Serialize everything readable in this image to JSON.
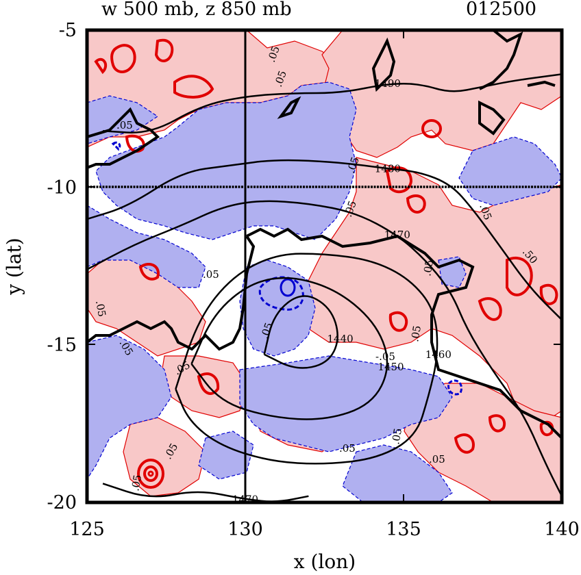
{
  "header": {
    "left_title": "w 500 mb, z 850 mb",
    "right_title": "012500"
  },
  "chart_data": {
    "type": "contour",
    "xlabel": "x (lon)",
    "ylabel": "y (lat)",
    "xlim": [
      125,
      140
    ],
    "ylim": [
      -20,
      -5
    ],
    "x_ticks": [
      125,
      130,
      135,
      140
    ],
    "y_ticks": [
      -5,
      -10,
      -15,
      -20
    ],
    "colors": {
      "positive_fill": "#f8c8c8",
      "negative_fill": "#b0b0f0",
      "positive_line": "#e00000",
      "negative_line": "#0000d0",
      "height_contour": "#000000"
    },
    "reference_lines": {
      "x": 130,
      "y": -10
    },
    "height_contours": [
      {
        "level": 1490,
        "label": "1490",
        "points": [
          [
            125.5,
            -8.2
          ],
          [
            127,
            -8.3
          ],
          [
            128.6,
            -7.4
          ],
          [
            130,
            -7.1
          ],
          [
            131.5,
            -7.0
          ],
          [
            133,
            -7.0
          ],
          [
            134.5,
            -6.7
          ],
          [
            135.5,
            -6.7
          ],
          [
            136.5,
            -7.0
          ],
          [
            137.5,
            -6.8
          ],
          [
            138.5,
            -6.6
          ],
          [
            140,
            -6.4
          ]
        ]
      },
      {
        "level": 1480,
        "label": "1480",
        "points": [
          [
            125,
            -11.0
          ],
          [
            126.3,
            -10.6
          ],
          [
            128,
            -9.5
          ],
          [
            129.5,
            -9.3
          ],
          [
            131,
            -9.1
          ],
          [
            133,
            -9.2
          ],
          [
            134.5,
            -9.4
          ],
          [
            135.5,
            -9.5
          ],
          [
            136.5,
            -9.9
          ],
          [
            137.2,
            -10.7
          ],
          [
            138,
            -11.8
          ],
          [
            139,
            -13.2
          ],
          [
            140,
            -14.2
          ]
        ]
      },
      {
        "level": 1470,
        "label": "1470",
        "points": [
          [
            125,
            -12.6
          ],
          [
            126.5,
            -11.8
          ],
          [
            128,
            -11.2
          ],
          [
            129.3,
            -10.6
          ],
          [
            130.5,
            -10.4
          ],
          [
            132,
            -10.5
          ],
          [
            133.5,
            -10.8
          ],
          [
            134.8,
            -11.5
          ],
          [
            135.7,
            -12.3
          ],
          [
            136.5,
            -13.3
          ],
          [
            137,
            -14.5
          ],
          [
            137.8,
            -15.8
          ],
          [
            138.8,
            -17.2
          ],
          [
            139.5,
            -18.8
          ],
          [
            140,
            -19.8
          ]
        ]
      },
      {
        "level": 1460,
        "label": "1460",
        "points": [
          [
            127.8,
            -16.4
          ],
          [
            128.5,
            -14.2
          ],
          [
            129.6,
            -12.8
          ],
          [
            131,
            -12.1
          ],
          [
            132.5,
            -12.1
          ],
          [
            134,
            -12.3
          ],
          [
            135.2,
            -12.9
          ],
          [
            136,
            -13.9
          ],
          [
            136.1,
            -15.3
          ],
          [
            135.8,
            -16.6
          ],
          [
            135.4,
            -17.9
          ],
          [
            134.2,
            -18.6
          ],
          [
            132.5,
            -18.8
          ],
          [
            130.8,
            -18.7
          ],
          [
            129.2,
            -18.2
          ],
          [
            128.2,
            -17.4
          ],
          [
            127.8,
            -16.4
          ]
        ]
      },
      {
        "level": 1450,
        "label": "1450",
        "points": [
          [
            128.3,
            -15.6
          ],
          [
            129,
            -14.0
          ],
          [
            130.2,
            -13.0
          ],
          [
            131.5,
            -12.8
          ],
          [
            133,
            -13.3
          ],
          [
            134.2,
            -14.4
          ],
          [
            134.6,
            -15.7
          ],
          [
            134,
            -16.9
          ],
          [
            132.5,
            -17.4
          ],
          [
            130.8,
            -17.3
          ],
          [
            129.2,
            -16.8
          ],
          [
            128.3,
            -15.6
          ]
        ]
      },
      {
        "level": 1440,
        "label": "1440",
        "points": [
          [
            130.6,
            -15.3
          ],
          [
            130.9,
            -14.0
          ],
          [
            131.8,
            -13.3
          ],
          [
            132.7,
            -13.8
          ],
          [
            133,
            -14.8
          ],
          [
            132.6,
            -15.6
          ],
          [
            131.6,
            -15.8
          ],
          [
            130.6,
            -15.3
          ]
        ]
      },
      {
        "level": 1470,
        "label": "1470",
        "points": [
          [
            125.5,
            -19.4
          ],
          [
            127,
            -19.9
          ],
          [
            128.5,
            -19.6
          ],
          [
            130,
            -19.9
          ],
          [
            131,
            -20
          ],
          [
            132,
            -19.8
          ]
        ]
      }
    ],
    "interval_labels": [
      ".05",
      "-.05",
      ".50"
    ]
  }
}
